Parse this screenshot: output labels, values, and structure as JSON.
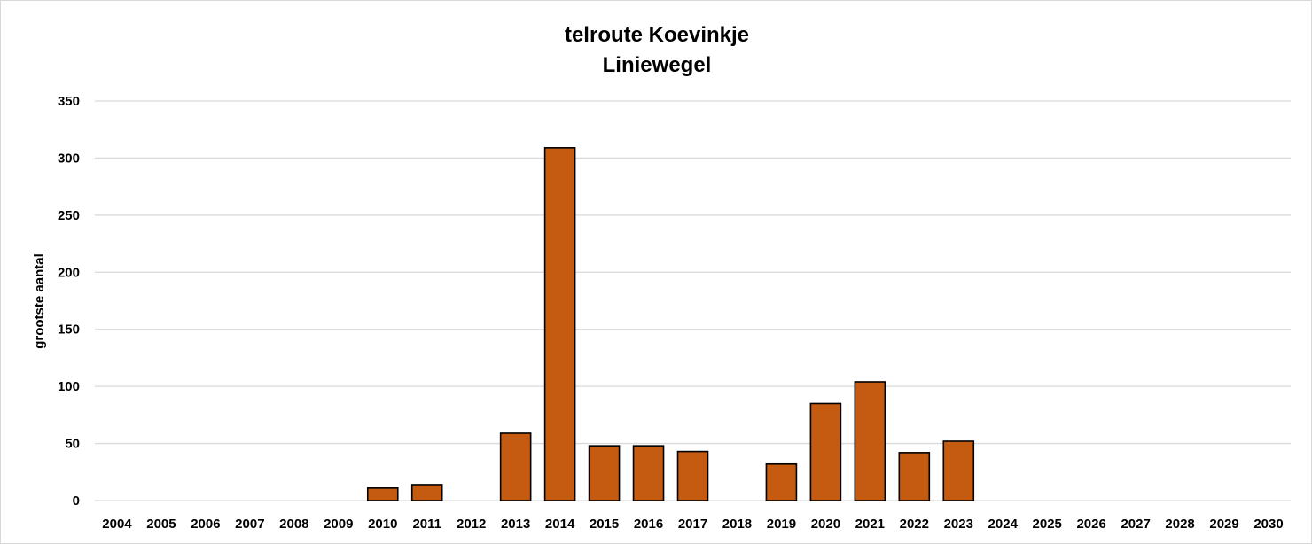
{
  "chart_data": {
    "type": "bar",
    "title_lines": [
      "telroute Koevinkje",
      "Liniewegel"
    ],
    "xlabel": "",
    "ylabel": "grootste aantal",
    "ylim": [
      0,
      350
    ],
    "yticks": [
      0,
      50,
      100,
      150,
      200,
      250,
      300,
      350
    ],
    "grid": true,
    "legend": "none",
    "categories": [
      "2004",
      "2005",
      "2006",
      "2007",
      "2008",
      "2009",
      "2010",
      "2011",
      "2012",
      "2013",
      "2014",
      "2015",
      "2016",
      "2017",
      "2018",
      "2019",
      "2020",
      "2021",
      "2022",
      "2023",
      "2024",
      "2025",
      "2026",
      "2027",
      "2028",
      "2029",
      "2030"
    ],
    "values": [
      null,
      null,
      null,
      null,
      null,
      null,
      11,
      14,
      null,
      59,
      309,
      48,
      48,
      43,
      null,
      32,
      85,
      104,
      42,
      52,
      null,
      null,
      null,
      null,
      null,
      null,
      null
    ],
    "colors": {
      "bar_fill": "#C55A11",
      "bar_stroke": "#000000",
      "grid": "#d9d9d9",
      "axis": "#d9d9d9"
    }
  }
}
